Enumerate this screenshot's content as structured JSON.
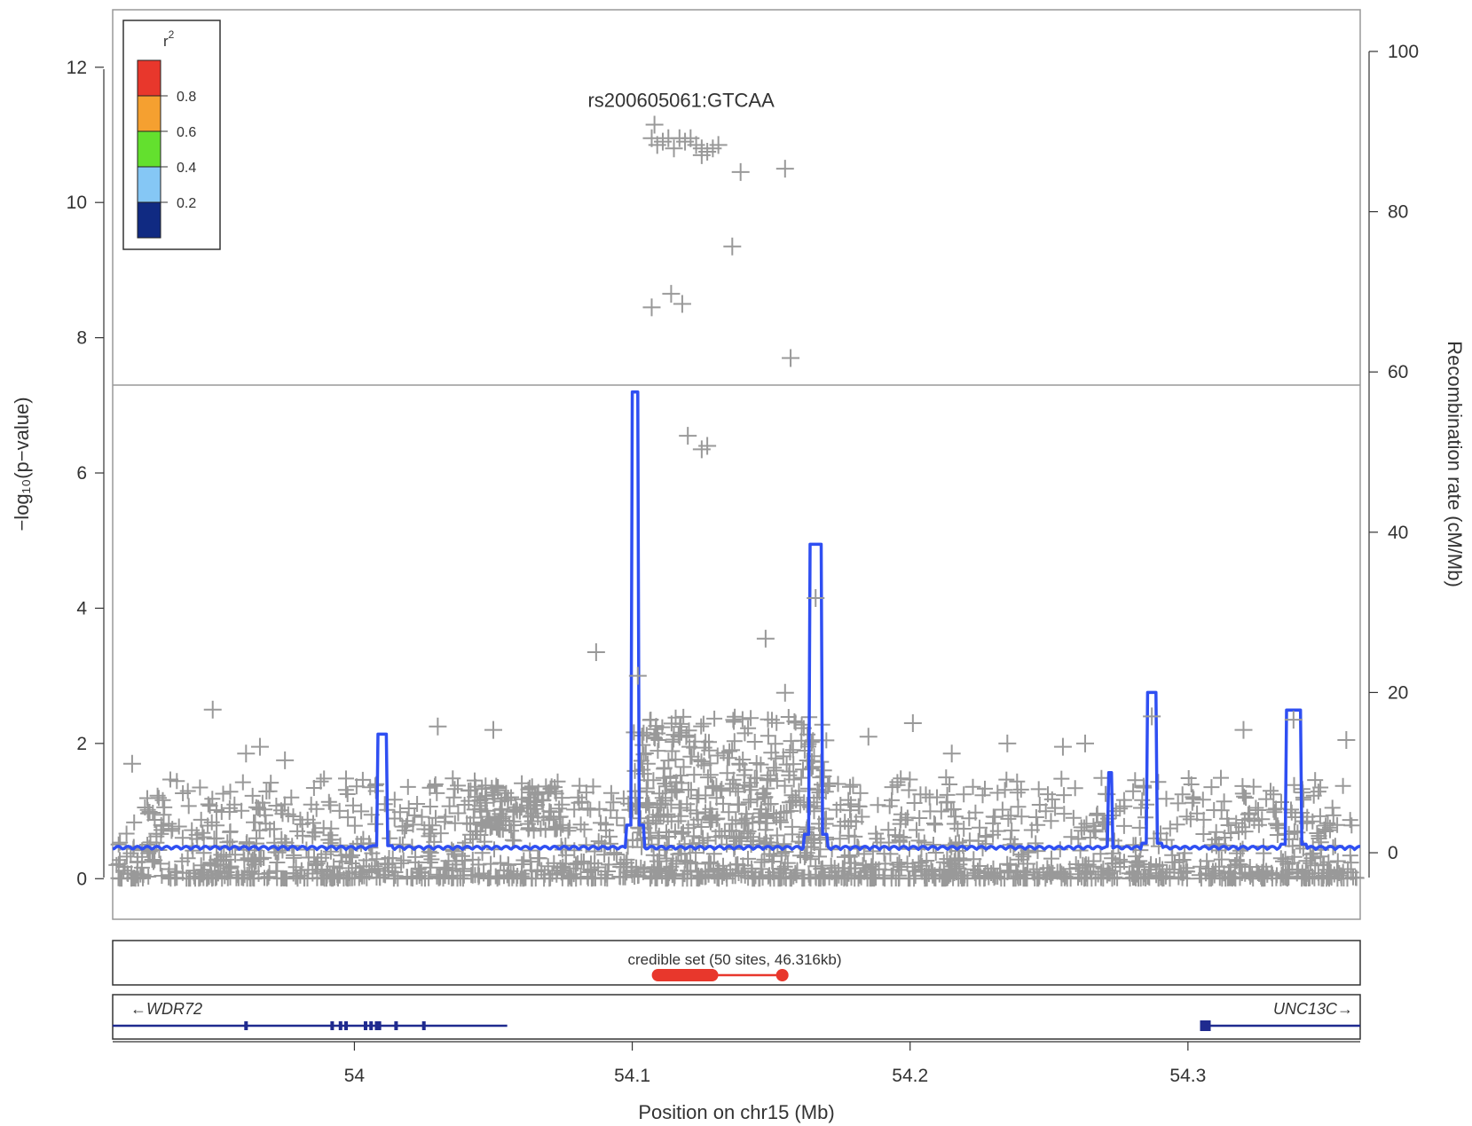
{
  "chart_data": {
    "type": "scatter",
    "xlabel": "Position on chr15 (Mb)",
    "ylabel": "−log₁₀(p−value)",
    "y2label": "Recombination rate (cM/Mb)",
    "xlim": [
      53.913,
      54.362
    ],
    "ylim": [
      -0.6,
      12.85
    ],
    "y2lim": [
      -8.3,
      105.2
    ],
    "xticks": [
      "54",
      "54.1",
      "54.2",
      "54.3"
    ],
    "xtick_values": [
      54.0,
      54.1,
      54.2,
      54.3
    ],
    "yticks": [
      "0",
      "2",
      "4",
      "6",
      "8",
      "10",
      "12"
    ],
    "ytick_values": [
      0,
      2,
      4,
      6,
      8,
      10,
      12
    ],
    "y2ticks": [
      "0",
      "20",
      "40",
      "60",
      "80",
      "100"
    ],
    "y2tick_values": [
      0,
      20,
      40,
      60,
      80,
      100
    ],
    "significance_line": 7.3,
    "lead_snp": {
      "label": "rs200605061:GTCAA",
      "x": 54.108,
      "y": 11.15
    },
    "legend": {
      "title": "r",
      "title_sup": "2",
      "labels": [
        "0.8",
        "0.6",
        "0.4",
        "0.2"
      ],
      "colors": [
        "#e8372c",
        "#f5a030",
        "#63e02e",
        "#85c7f5",
        "#102a82"
      ]
    },
    "point_color": "#999999",
    "recomb_color": "#2f4ff2",
    "top_points": [
      {
        "x": 54.108,
        "y": 11.15
      },
      {
        "x": 54.107,
        "y": 10.95
      },
      {
        "x": 54.109,
        "y": 10.85
      },
      {
        "x": 54.111,
        "y": 10.9
      },
      {
        "x": 54.113,
        "y": 10.95
      },
      {
        "x": 54.115,
        "y": 10.8
      },
      {
        "x": 54.117,
        "y": 10.95
      },
      {
        "x": 54.119,
        "y": 10.9
      },
      {
        "x": 54.121,
        "y": 10.95
      },
      {
        "x": 54.123,
        "y": 10.85
      },
      {
        "x": 54.125,
        "y": 10.8
      },
      {
        "x": 54.127,
        "y": 10.75
      },
      {
        "x": 54.129,
        "y": 10.8
      },
      {
        "x": 54.131,
        "y": 10.85
      },
      {
        "x": 54.125,
        "y": 10.7
      },
      {
        "x": 54.139,
        "y": 10.45
      },
      {
        "x": 54.155,
        "y": 10.5
      },
      {
        "x": 54.136,
        "y": 9.35
      },
      {
        "x": 54.107,
        "y": 8.45
      },
      {
        "x": 54.114,
        "y": 8.65
      },
      {
        "x": 54.118,
        "y": 8.5
      },
      {
        "x": 54.157,
        "y": 7.7
      },
      {
        "x": 54.12,
        "y": 6.55
      },
      {
        "x": 54.125,
        "y": 6.35
      },
      {
        "x": 54.127,
        "y": 6.4
      },
      {
        "x": 54.166,
        "y": 4.15
      },
      {
        "x": 54.087,
        "y": 3.35
      },
      {
        "x": 54.148,
        "y": 3.55
      },
      {
        "x": 53.949,
        "y": 2.5
      },
      {
        "x": 54.102,
        "y": 3.0
      },
      {
        "x": 54.155,
        "y": 2.75
      },
      {
        "x": 54.03,
        "y": 2.25
      },
      {
        "x": 54.05,
        "y": 2.2
      },
      {
        "x": 54.338,
        "y": 2.35
      },
      {
        "x": 54.201,
        "y": 2.3
      },
      {
        "x": 54.117,
        "y": 2.1
      },
      {
        "x": 54.235,
        "y": 2.0
      },
      {
        "x": 54.255,
        "y": 1.95
      },
      {
        "x": 54.263,
        "y": 2.0
      },
      {
        "x": 54.185,
        "y": 2.1
      },
      {
        "x": 53.966,
        "y": 1.95
      },
      {
        "x": 53.961,
        "y": 1.85
      },
      {
        "x": 53.975,
        "y": 1.75
      },
      {
        "x": 53.92,
        "y": 1.7
      },
      {
        "x": 54.215,
        "y": 1.85
      },
      {
        "x": 54.287,
        "y": 2.4
      },
      {
        "x": 54.32,
        "y": 2.2
      },
      {
        "x": 54.357,
        "y": 2.05
      }
    ],
    "recomb_peaks": [
      {
        "x": 54.01,
        "y": 14.8,
        "w": 0.0016
      },
      {
        "x": 54.101,
        "y": 57.5,
        "w": 0.0014
      },
      {
        "x": 54.166,
        "y": 38.5,
        "w": 0.0022
      },
      {
        "x": 54.272,
        "y": 10.0,
        "w": 0.0008
      },
      {
        "x": 54.287,
        "y": 20.0,
        "w": 0.0016
      },
      {
        "x": 54.338,
        "y": 17.8,
        "w": 0.0028
      }
    ],
    "credible_set": {
      "label": "credible set (50 sites, 46.316kb)",
      "start": 54.108,
      "dense_end": 54.13,
      "end": 54.154,
      "color": "#e8372c"
    },
    "genes": [
      {
        "name": "WDR72",
        "direction": "left",
        "start": 53.913,
        "end": 54.055,
        "exons": [
          53.961,
          53.992,
          53.995,
          53.997,
          54.004,
          54.006,
          54.008,
          54.009,
          54.015,
          54.025
        ]
      },
      {
        "name": "UNC13C",
        "direction": "right",
        "start": 54.305,
        "end": 54.362,
        "exons": [
          54.305
        ]
      }
    ],
    "gene_color": "#1f2a8f"
  }
}
